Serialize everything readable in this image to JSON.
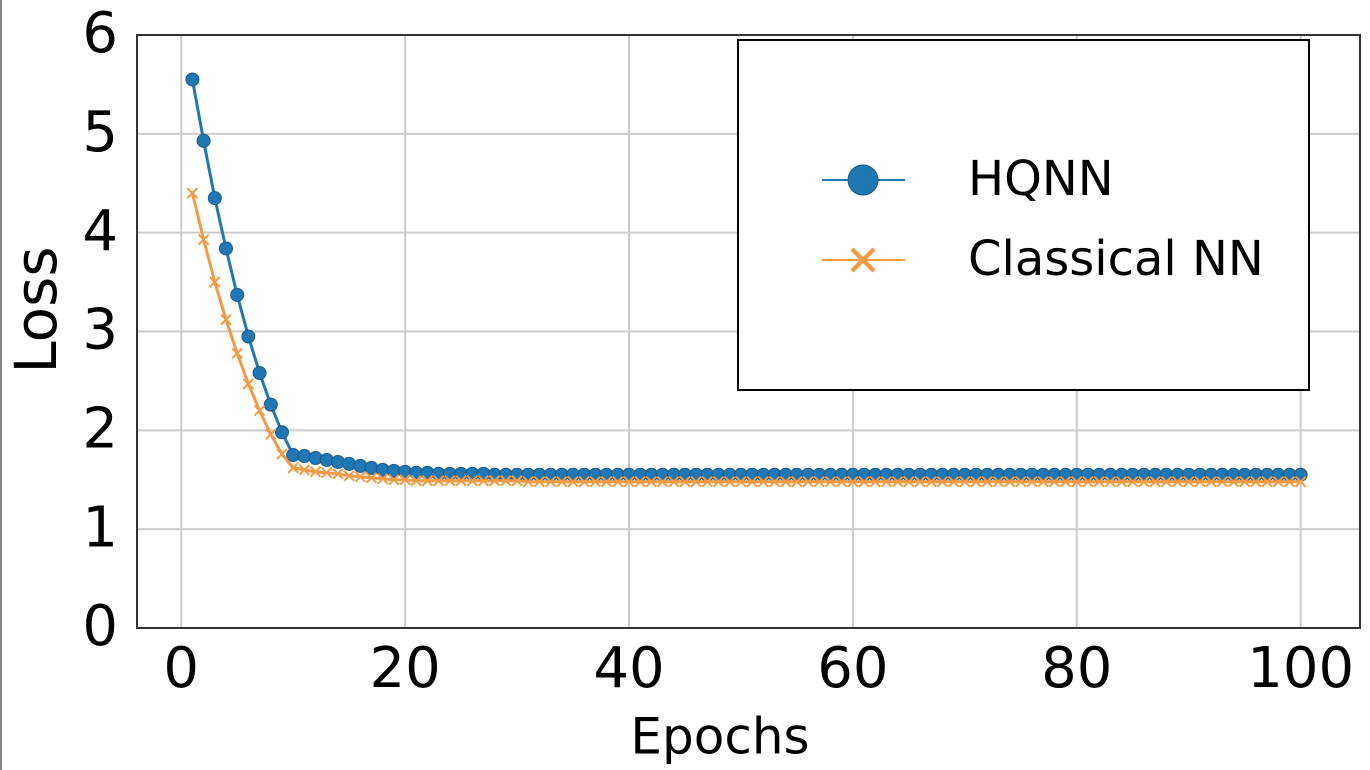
{
  "chart_data": {
    "type": "line",
    "x_label": "Epochs",
    "y_label": "Loss",
    "x": [
      1,
      2,
      3,
      4,
      5,
      6,
      7,
      8,
      9,
      10,
      11,
      12,
      13,
      14,
      15,
      16,
      17,
      18,
      19,
      20,
      21,
      22,
      23,
      24,
      25,
      26,
      27,
      28,
      29,
      30,
      31,
      32,
      33,
      34,
      35,
      36,
      37,
      38,
      39,
      40,
      41,
      42,
      43,
      44,
      45,
      46,
      47,
      48,
      49,
      50,
      51,
      52,
      53,
      54,
      55,
      56,
      57,
      58,
      59,
      60,
      61,
      62,
      63,
      64,
      65,
      66,
      67,
      68,
      69,
      70,
      71,
      72,
      73,
      74,
      75,
      76,
      77,
      78,
      79,
      80,
      81,
      82,
      83,
      84,
      85,
      86,
      87,
      88,
      89,
      90,
      91,
      92,
      93,
      94,
      95,
      96,
      97,
      98,
      99,
      100
    ],
    "series": [
      {
        "name": "HQNN",
        "color": "#1f77b4",
        "marker": "circle",
        "values": [
          5.55,
          4.93,
          4.35,
          3.84,
          3.37,
          2.95,
          2.58,
          2.26,
          1.98,
          1.75,
          1.74,
          1.72,
          1.7,
          1.68,
          1.66,
          1.64,
          1.62,
          1.6,
          1.59,
          1.58,
          1.57,
          1.57,
          1.56,
          1.56,
          1.56,
          1.56,
          1.56,
          1.55,
          1.55,
          1.55,
          1.55,
          1.55,
          1.55,
          1.55,
          1.55,
          1.55,
          1.55,
          1.55,
          1.55,
          1.55,
          1.55,
          1.55,
          1.55,
          1.55,
          1.55,
          1.55,
          1.55,
          1.55,
          1.55,
          1.55,
          1.55,
          1.55,
          1.55,
          1.55,
          1.55,
          1.55,
          1.55,
          1.55,
          1.55,
          1.55,
          1.55,
          1.55,
          1.55,
          1.55,
          1.55,
          1.55,
          1.55,
          1.55,
          1.55,
          1.55,
          1.55,
          1.55,
          1.55,
          1.55,
          1.55,
          1.55,
          1.55,
          1.55,
          1.55,
          1.55,
          1.55,
          1.55,
          1.55,
          1.55,
          1.55,
          1.55,
          1.55,
          1.55,
          1.55,
          1.55,
          1.55,
          1.55,
          1.55,
          1.55,
          1.55,
          1.55,
          1.55,
          1.55,
          1.55,
          1.55
        ]
      },
      {
        "name": "Classical NN",
        "color": "#f39a45",
        "marker": "x",
        "values": [
          4.4,
          3.93,
          3.5,
          3.12,
          2.78,
          2.47,
          2.2,
          1.96,
          1.76,
          1.62,
          1.6,
          1.58,
          1.57,
          1.56,
          1.54,
          1.53,
          1.52,
          1.51,
          1.5,
          1.5,
          1.49,
          1.49,
          1.49,
          1.49,
          1.49,
          1.49,
          1.49,
          1.49,
          1.49,
          1.49,
          1.48,
          1.48,
          1.48,
          1.48,
          1.48,
          1.48,
          1.48,
          1.48,
          1.48,
          1.48,
          1.48,
          1.48,
          1.48,
          1.48,
          1.48,
          1.48,
          1.48,
          1.48,
          1.48,
          1.48,
          1.48,
          1.48,
          1.48,
          1.48,
          1.48,
          1.48,
          1.48,
          1.48,
          1.48,
          1.48,
          1.48,
          1.48,
          1.48,
          1.48,
          1.48,
          1.48,
          1.48,
          1.48,
          1.48,
          1.48,
          1.48,
          1.48,
          1.48,
          1.48,
          1.48,
          1.48,
          1.48,
          1.48,
          1.48,
          1.48,
          1.48,
          1.48,
          1.48,
          1.48,
          1.48,
          1.48,
          1.48,
          1.48,
          1.48,
          1.48,
          1.48,
          1.48,
          1.48,
          1.48,
          1.48,
          1.48,
          1.48,
          1.48,
          1.48,
          1.48
        ]
      }
    ],
    "xlim": [
      -3.95,
      105.3
    ],
    "ylim": [
      0,
      6
    ],
    "xticks": [
      0,
      20,
      40,
      60,
      80,
      100
    ],
    "yticks": [
      0,
      1,
      2,
      3,
      4,
      5,
      6
    ],
    "grid": true,
    "legend": "upper right"
  }
}
